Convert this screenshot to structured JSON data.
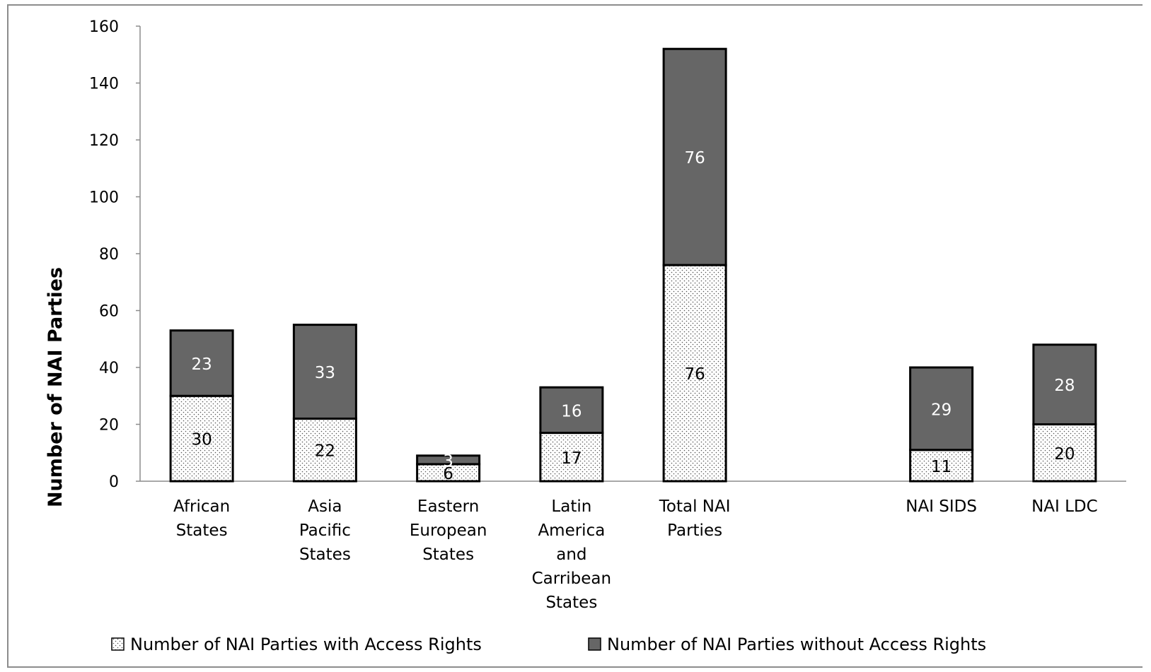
{
  "chart_data": {
    "type": "bar",
    "stacked": true,
    "ylabel": "Number of  NAI Parties",
    "xlabel": "",
    "ylim": [
      0,
      160
    ],
    "yticks": [
      0,
      20,
      40,
      60,
      80,
      100,
      120,
      140,
      160
    ],
    "grid": false,
    "legend_position": "bottom",
    "categories": [
      [
        "African",
        "States"
      ],
      [
        "Asia",
        "Pacific",
        "States"
      ],
      [
        "Eastern",
        "European",
        "States"
      ],
      [
        "Latin",
        "America",
        "and",
        "Carribean",
        "States"
      ],
      [
        "Total NAI",
        "Parties"
      ],
      [
        ""
      ],
      [
        "NAI SIDS"
      ],
      [
        "NAI LDC"
      ]
    ],
    "series": [
      {
        "name": "Number of NAI Parties with Access Rights",
        "color": "#ffffff",
        "pattern": "dotted",
        "values": [
          30,
          22,
          6,
          17,
          76,
          null,
          11,
          20
        ]
      },
      {
        "name": "Number of NAI Parties without Access Rights",
        "color": "#666666",
        "pattern": "solid",
        "values": [
          23,
          33,
          3,
          16,
          76,
          null,
          29,
          28
        ]
      }
    ]
  }
}
